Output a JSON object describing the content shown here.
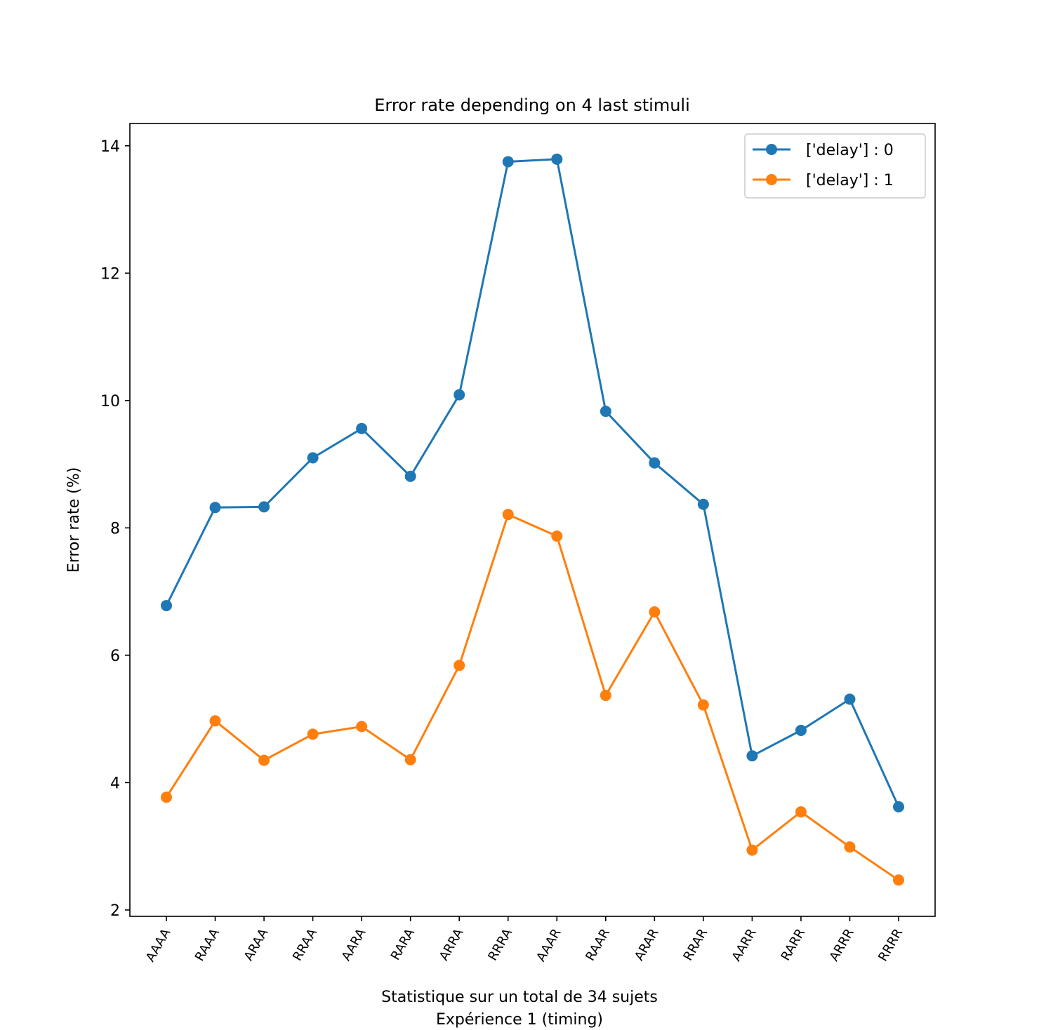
{
  "chart_data": {
    "type": "line",
    "title": "Error rate depending on 4 last stimuli",
    "xlabel_line1": "Statistique sur un total de 34 sujets",
    "xlabel_line2": "Expérience 1 (timing)",
    "ylabel": "Error rate (%)",
    "categories": [
      "AAAA",
      "RAAA",
      "ARAA",
      "RRAA",
      "AARA",
      "RARA",
      "ARRA",
      "RRRA",
      "AAAR",
      "RAAR",
      "ARAR",
      "RRAR",
      "AARR",
      "RARR",
      "ARRR",
      "RRRR"
    ],
    "ylim": [
      1.9,
      14.35
    ],
    "yticks": [
      2,
      4,
      6,
      8,
      10,
      12,
      14
    ],
    "legend_position": "top-right",
    "grid": false,
    "series": [
      {
        "name": "['delay'] : 0",
        "color": "#1f77b4",
        "values": [
          6.78,
          8.32,
          8.33,
          9.1,
          9.56,
          8.81,
          10.09,
          13.75,
          13.79,
          9.83,
          9.02,
          8.37,
          4.42,
          4.82,
          5.31,
          3.62
        ]
      },
      {
        "name": "['delay'] : 1",
        "color": "#ff7f0e",
        "values": [
          3.77,
          4.97,
          4.35,
          4.76,
          4.88,
          4.36,
          5.84,
          8.21,
          7.87,
          5.37,
          6.68,
          5.22,
          2.94,
          3.54,
          2.99,
          2.47
        ]
      }
    ]
  }
}
